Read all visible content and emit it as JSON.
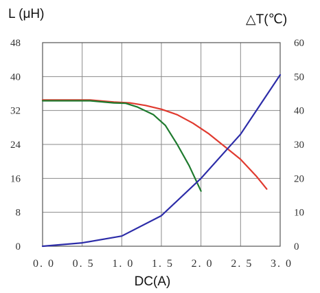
{
  "chart_data": {
    "type": "line",
    "xlabel": "DC(A)",
    "ylabel_left": "L (μH)",
    "ylabel_right": "△T(℃)",
    "xlim": [
      0,
      3.0
    ],
    "ylim_left": [
      0,
      48
    ],
    "ylim_right": [
      0,
      60
    ],
    "x_ticks": [
      "0. 0",
      "0. 5",
      "1. 0",
      "1. 5",
      "2. 0",
      "2. 5",
      "3. 0"
    ],
    "x_tick_values": [
      0,
      0.5,
      1.0,
      1.5,
      2.0,
      2.5,
      3.0
    ],
    "y_ticks_left": [
      "0",
      "8",
      "16",
      "24",
      "32",
      "40",
      "48"
    ],
    "y_ticks_right": [
      "0",
      "10",
      "20",
      "30",
      "40",
      "50",
      "60"
    ],
    "grid": true,
    "legend": "none",
    "series": [
      {
        "axis": "left",
        "color": "#e03a2f",
        "points": [
          [
            0,
            34.5
          ],
          [
            0.6,
            34.5
          ],
          [
            0.9,
            34.0
          ],
          [
            1.1,
            33.8
          ],
          [
            1.3,
            33.2
          ],
          [
            1.5,
            32.3
          ],
          [
            1.7,
            31.0
          ],
          [
            1.9,
            29.0
          ],
          [
            2.1,
            26.5
          ],
          [
            2.3,
            23.5
          ],
          [
            2.5,
            20.5
          ],
          [
            2.7,
            16.5
          ],
          [
            2.83,
            13.5
          ]
        ]
      },
      {
        "axis": "left",
        "color": "#1e7a2e",
        "points": [
          [
            0,
            34.3
          ],
          [
            0.6,
            34.3
          ],
          [
            0.9,
            33.8
          ],
          [
            1.05,
            33.7
          ],
          [
            1.2,
            32.8
          ],
          [
            1.4,
            31.0
          ],
          [
            1.55,
            28.5
          ],
          [
            1.7,
            24.0
          ],
          [
            1.85,
            19.0
          ],
          [
            2.0,
            13.0
          ]
        ]
      },
      {
        "axis": "right",
        "color": "#2c2ca8",
        "points": [
          [
            0,
            0
          ],
          [
            0.5,
            1.0
          ],
          [
            1.0,
            3.0
          ],
          [
            1.5,
            9.0
          ],
          [
            2.0,
            20.0
          ],
          [
            2.5,
            33.0
          ],
          [
            3.0,
            50.5
          ]
        ]
      }
    ]
  }
}
